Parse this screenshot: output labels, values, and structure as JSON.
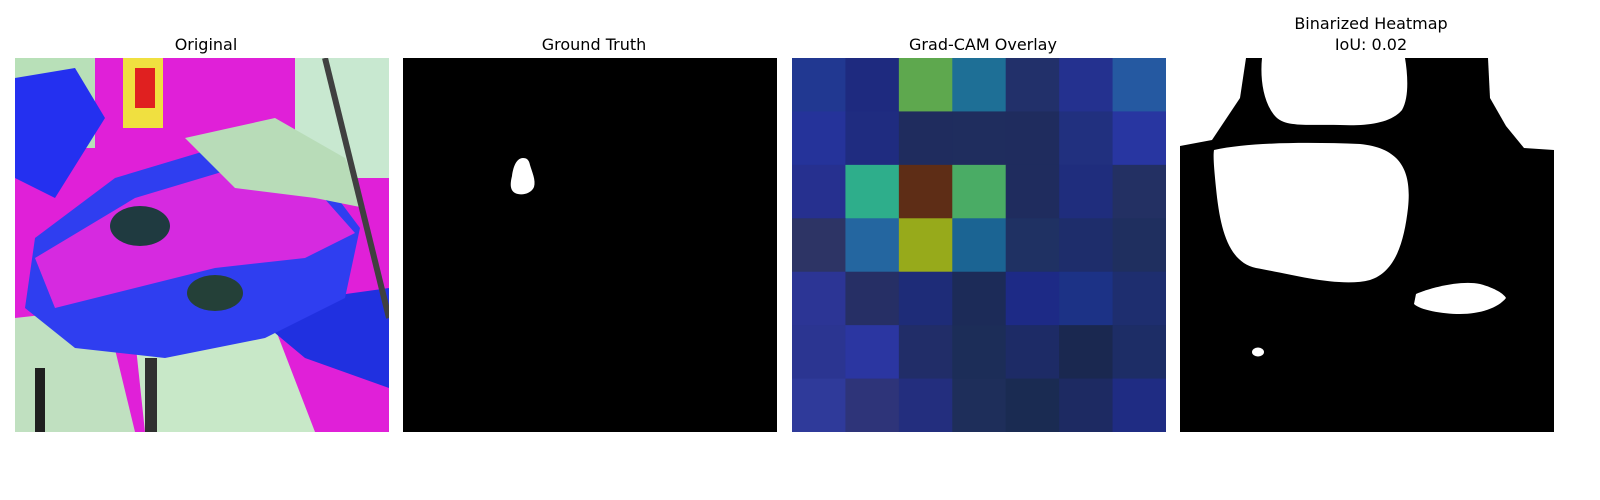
{
  "panels": [
    {
      "title": "Original"
    },
    {
      "title": "Ground Truth"
    },
    {
      "title": "Grad-CAM Overlay"
    },
    {
      "title": "Binarized Heatmap",
      "subtitle": "IoU: 0.02"
    }
  ],
  "gradcam_grid": [
    [
      "#213891",
      "#1e2a7f",
      "#5ea84e",
      "#1e6f96",
      "#22306a",
      "#24318f",
      "#2559a1"
    ],
    [
      "#25339a",
      "#1f2c80",
      "#1f2c5e",
      "#1f2d5e",
      "#1f2c5e",
      "#21307f",
      "#2836a1"
    ],
    [
      "#26308f",
      "#2eae8b",
      "#5e2d16",
      "#4aac65",
      "#1f2c5e",
      "#1f2d7d",
      "#233063"
    ],
    [
      "#2d3465",
      "#2466a0",
      "#97aa1b",
      "#1b6493",
      "#1f3163",
      "#1e2d6b",
      "#1f2f5f"
    ],
    [
      "#2c3595",
      "#262f65",
      "#1e2c78",
      "#1c2b58",
      "#1d2a86",
      "#1c3286",
      "#1e2e6f"
    ],
    [
      "#2b3591",
      "#2b36a1",
      "#212d68",
      "#1c2d58",
      "#1d2b66",
      "#1a2850",
      "#1d2d66"
    ],
    [
      "#2f3a9a",
      "#2e3479",
      "#232e7e",
      "#1e2e5a",
      "#1a2b52",
      "#1d2a62",
      "#1f2c83"
    ]
  ],
  "colors": {
    "background": "#ffffff",
    "mask_bg": "#000000",
    "mask_fg": "#ffffff"
  }
}
